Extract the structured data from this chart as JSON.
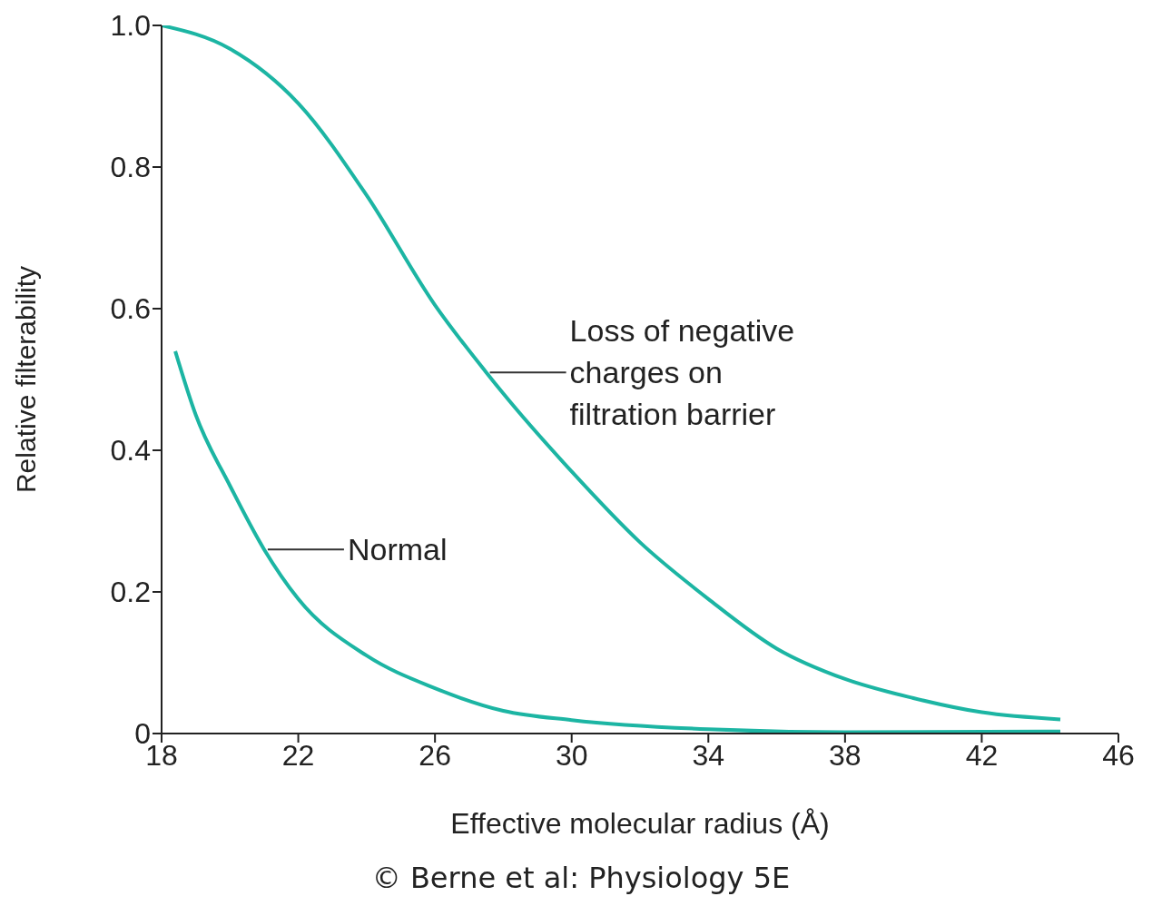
{
  "chart_data": {
    "type": "line",
    "xlabel": "Effective molecular radius (Å)",
    "ylabel": "Relative filterability",
    "xlim": [
      18,
      46
    ],
    "xticks": [
      18,
      22,
      26,
      30,
      34,
      38,
      42,
      46
    ],
    "ylim": [
      0,
      1
    ],
    "yticks": [
      0,
      0.2,
      0.4,
      0.6,
      {
        "value": 1,
        "label": "1.0"
      },
      0.8
    ],
    "grid": false,
    "legend": false,
    "marker": "none",
    "line_style": "solid",
    "series": [
      {
        "color": "#1cb5a3",
        "x": [
          18,
          20,
          22,
          24,
          26,
          27.5,
          28,
          30,
          32,
          34,
          36,
          38,
          40,
          42,
          44.3
        ],
        "values": [
          1.0,
          0.967,
          0.89,
          0.76,
          0.605,
          0.51,
          0.48,
          0.37,
          0.27,
          0.19,
          0.12,
          0.077,
          0.05,
          0.03,
          0.02
        ]
      },
      {
        "color": "#1cb5a3",
        "x": [
          18.4,
          19,
          20,
          21,
          22,
          24,
          26,
          28,
          30,
          34,
          38,
          44.3
        ],
        "values": [
          0.54,
          0.45,
          0.35,
          0.26,
          0.19,
          0.11,
          0.064,
          0.032,
          0.019,
          0.006,
          0.002,
          0.003
        ]
      }
    ],
    "annotations": [
      {
        "text": "Loss of negative charges on filtration barrier",
        "x": 27.5,
        "y": 0.51
      },
      {
        "text": "Normal",
        "x": 21,
        "y": 0.26
      },
      "© Berne et al: Physiology 5E"
    ]
  }
}
